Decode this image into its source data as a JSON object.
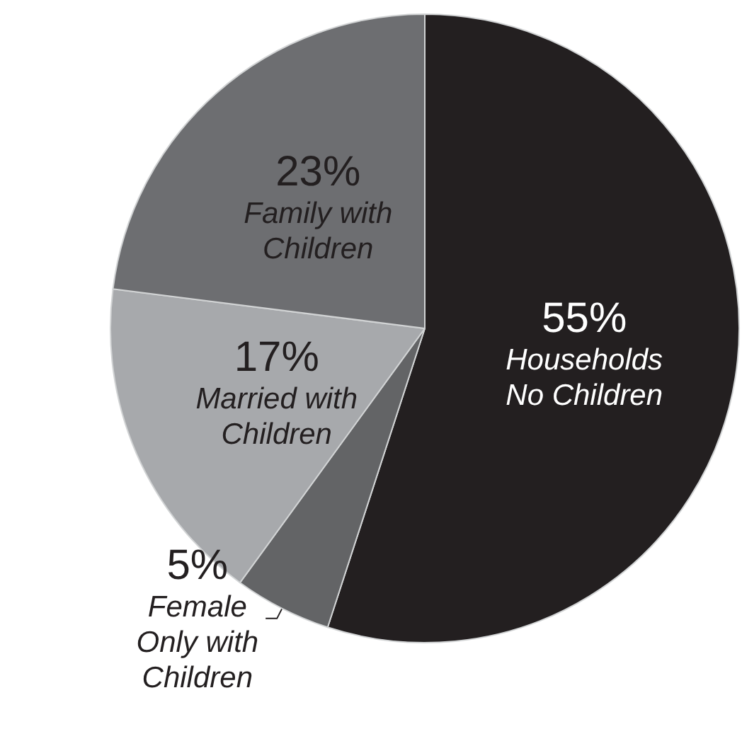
{
  "chart_data": {
    "type": "pie",
    "categories": [
      "Households No Children",
      "Female Only with Children",
      "Married with Children",
      "Family with Children"
    ],
    "values": [
      55,
      5,
      17,
      23
    ],
    "value_labels": [
      "55%",
      "5%",
      "17%",
      "23%"
    ],
    "colors": [
      "#231f20",
      "#636466",
      "#a7a9ac",
      "#6d6e71"
    ]
  }
}
